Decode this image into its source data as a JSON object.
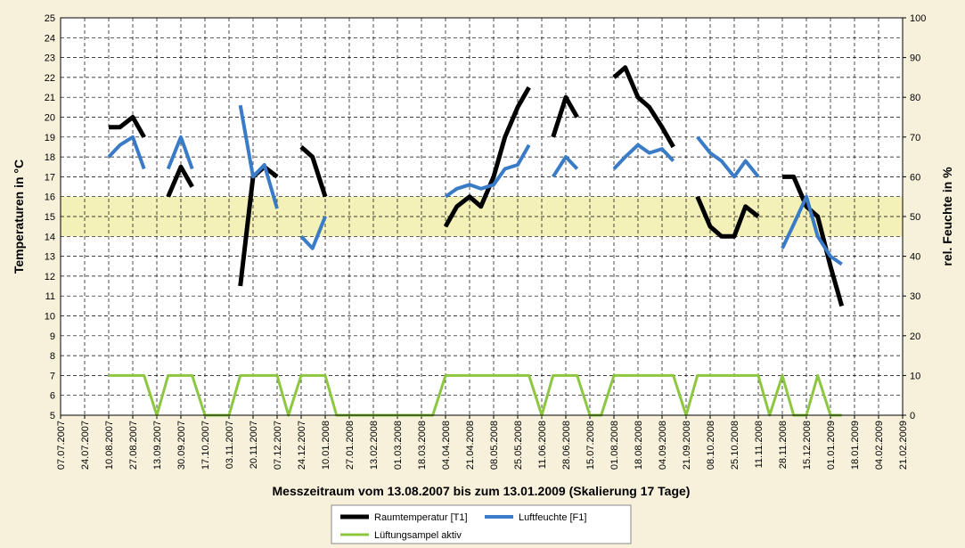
{
  "chart_data": {
    "type": "line",
    "x_label": "Messzeitraum vom 13.08.2007 bis zum 13.01.2009  (Skalierung 17 Tage)",
    "y_label": "Temperaturen in °C",
    "y2_label": "rel. Feuchte in %",
    "xlim": [
      "07.07.2007",
      "21.02.2009"
    ],
    "xticks": [
      "07.07.2007",
      "24.07.2007",
      "10.08.2007",
      "27.08.2007",
      "13.09.2007",
      "30.09.2007",
      "17.10.2007",
      "03.11.2007",
      "20.11.2007",
      "07.12.2007",
      "24.12.2007",
      "10.01.2008",
      "27.01.2008",
      "13.02.2008",
      "01.03.2008",
      "18.03.2008",
      "04.04.2008",
      "21.04.2008",
      "08.05.2008",
      "25.05.2008",
      "11.06.2008",
      "28.06.2008",
      "15.07.2008",
      "01.08.2008",
      "18.08.2008",
      "04.09.2008",
      "21.09.2008",
      "08.10.2008",
      "25.10.2008",
      "11.11.2008",
      "28.11.2008",
      "15.12.2008",
      "01.01.2009",
      "18.01.2009",
      "04.02.2009",
      "21.02.2009"
    ],
    "ylim": [
      5,
      25
    ],
    "yticks": [
      5,
      6,
      7,
      8,
      9,
      10,
      11,
      12,
      13,
      14,
      15,
      16,
      17,
      18,
      19,
      20,
      21,
      22,
      23,
      24,
      25
    ],
    "y2lim": [
      0,
      100
    ],
    "y2ticks": [
      0,
      10,
      20,
      30,
      40,
      50,
      60,
      70,
      80,
      90,
      100
    ],
    "grid": true,
    "band": [
      14,
      16
    ],
    "band_color": "#f4f1b8",
    "legend": "bottom",
    "x": [
      "10.08.2007",
      "18.08.2007",
      "27.08.2007",
      "04.09.2007",
      "13.09.2007",
      "21.09.2007",
      "30.09.2007",
      "08.10.2007",
      "17.10.2007",
      "25.10.2007",
      "03.11.2007",
      "11.11.2007",
      "20.11.2007",
      "28.11.2007",
      "07.12.2007",
      "15.12.2007",
      "24.12.2007",
      "01.01.2008",
      "10.01.2008",
      "18.01.2008",
      "27.01.2008",
      "04.02.2008",
      "13.02.2008",
      "21.02.2008",
      "01.03.2008",
      "09.03.2008",
      "18.03.2008",
      "26.03.2008",
      "04.04.2008",
      "12.04.2008",
      "21.04.2008",
      "29.04.2008",
      "08.05.2008",
      "16.05.2008",
      "25.05.2008",
      "02.06.2008",
      "11.06.2008",
      "19.06.2008",
      "28.06.2008",
      "06.07.2008",
      "15.07.2008",
      "23.07.2008",
      "01.08.2008",
      "09.08.2008",
      "18.08.2008",
      "26.08.2008",
      "04.09.2008",
      "12.09.2008",
      "21.09.2008",
      "29.09.2008",
      "08.10.2008",
      "16.10.2008",
      "25.10.2008",
      "02.11.2008",
      "11.11.2008",
      "19.11.2008",
      "28.11.2008",
      "06.12.2008",
      "15.12.2008",
      "23.12.2008",
      "01.01.2009",
      "09.01.2009"
    ],
    "series": [
      {
        "name": "Raumtemperatur [T1]",
        "color": "#000000",
        "width": 5,
        "values": [
          19.5,
          19.5,
          20,
          19,
          null,
          16,
          17.5,
          16.5,
          null,
          null,
          null,
          11.5,
          17,
          17.5,
          17,
          null,
          18.5,
          18,
          16,
          null,
          null,
          null,
          null,
          null,
          null,
          null,
          null,
          null,
          14.5,
          15.5,
          16,
          15.5,
          17,
          19,
          20.5,
          21.5,
          null,
          19,
          21,
          20,
          null,
          null,
          22,
          22.5,
          21,
          20.5,
          19.5,
          18.5,
          null,
          16,
          14.5,
          14,
          14,
          15.5,
          15,
          null,
          17,
          17,
          15.5,
          15,
          12.5,
          10.5
        ]
      },
      {
        "name": "Luftfeuchte [F1]",
        "color": "#3a7bc8",
        "width": 4,
        "axis": "y2",
        "values": [
          65,
          68,
          70,
          62,
          null,
          62,
          70,
          62,
          null,
          null,
          null,
          78,
          60,
          63,
          52,
          null,
          45,
          42,
          50,
          null,
          null,
          null,
          null,
          null,
          null,
          null,
          null,
          null,
          55,
          57,
          58,
          57,
          58,
          62,
          63,
          68,
          null,
          60,
          65,
          62,
          null,
          null,
          62,
          65,
          68,
          66,
          67,
          64,
          null,
          70,
          66,
          64,
          60,
          64,
          60,
          null,
          42,
          48,
          55,
          45,
          40,
          38
        ]
      },
      {
        "name": "Lüftungsampel aktiv",
        "color": "#8dc63f",
        "width": 3,
        "axis": "y2",
        "values": [
          10,
          10,
          10,
          10,
          0,
          10,
          10,
          10,
          0,
          0,
          0,
          10,
          10,
          10,
          10,
          0,
          10,
          10,
          10,
          0,
          0,
          0,
          0,
          0,
          0,
          0,
          0,
          0,
          10,
          10,
          10,
          10,
          10,
          10,
          10,
          10,
          0,
          10,
          10,
          10,
          0,
          0,
          10,
          10,
          10,
          10,
          10,
          10,
          0,
          10,
          10,
          10,
          10,
          10,
          10,
          0,
          10,
          0,
          0,
          10,
          0,
          0
        ]
      }
    ]
  }
}
